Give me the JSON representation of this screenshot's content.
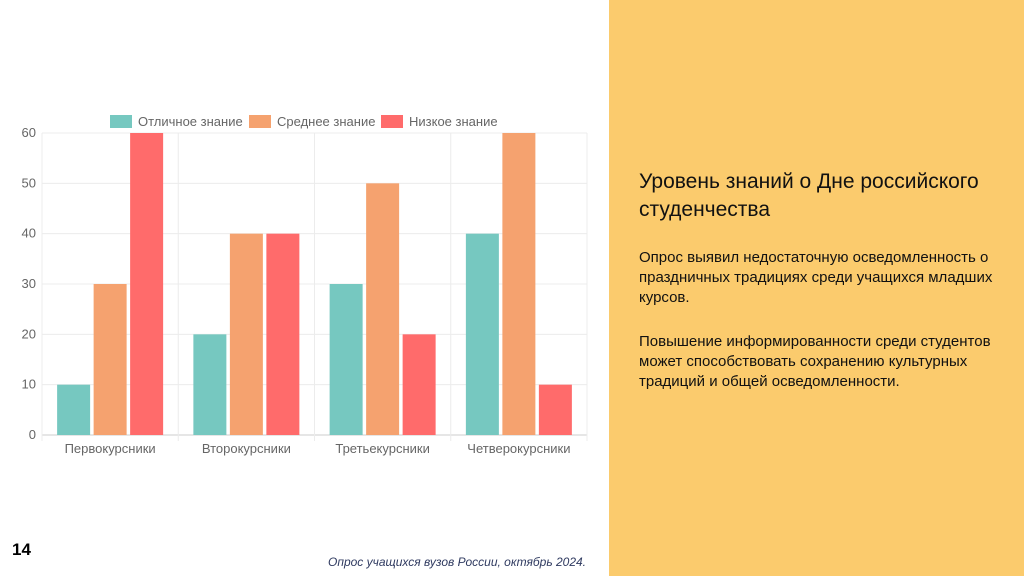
{
  "slide": {
    "number": "14",
    "source": "Опрос учащихся вузов России, октябрь 2024."
  },
  "panel": {
    "title": "Уровень знаний о Дне российского студенчества",
    "paragraph1": "Опрос выявил недостаточную осведомленность о праздничных традициях среди учащихся младших курсов.",
    "paragraph2": "Повышение информированности среди студентов может способствовать сохранению культурных традиций и общей осведомленности."
  },
  "colors": {
    "panel_bg": "#FBCB6D",
    "excellent": "#76C8C0",
    "medium": "#F5A26F",
    "low": "#FF6B6B"
  },
  "chart_data": {
    "type": "bar",
    "categories": [
      "Первокурсники",
      "Второкурсники",
      "Третьекурсники",
      "Четверокурсники"
    ],
    "series": [
      {
        "name": "Отличное знание",
        "color": "#76C8C0",
        "values": [
          10,
          20,
          30,
          40
        ]
      },
      {
        "name": "Среднее знание",
        "color": "#F5A26F",
        "values": [
          30,
          40,
          50,
          60
        ]
      },
      {
        "name": "Низкое знание",
        "color": "#FF6B6B",
        "values": [
          60,
          40,
          20,
          10
        ]
      }
    ],
    "ylim": [
      0,
      60
    ],
    "yticks": [
      0,
      10,
      20,
      30,
      40,
      50,
      60
    ],
    "legend": "top",
    "grid": true,
    "title": "",
    "xlabel": "",
    "ylabel": ""
  }
}
